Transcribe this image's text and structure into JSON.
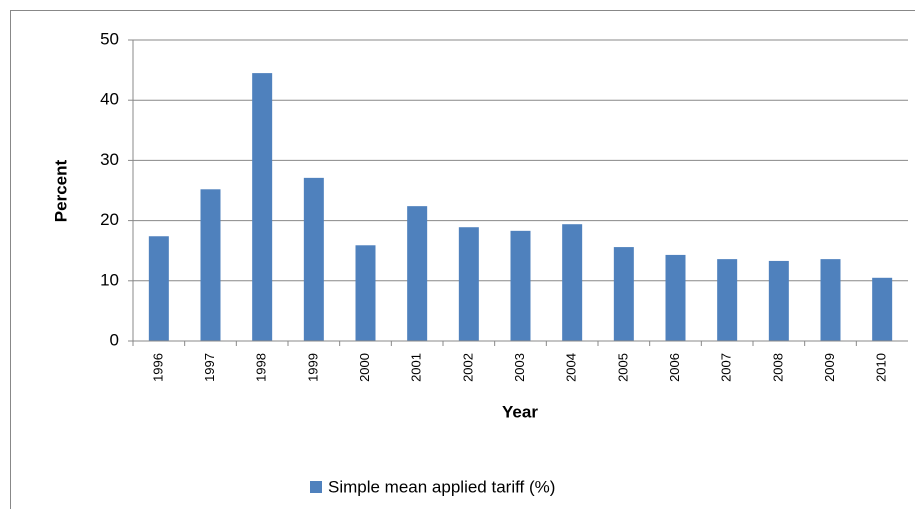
{
  "chart_data": {
    "type": "bar",
    "x_label": "Year",
    "y_label": "Percent",
    "categories": [
      "1996",
      "1997",
      "1998",
      "1999",
      "2000",
      "2001",
      "2002",
      "2003",
      "2004",
      "2005",
      "2006",
      "2007",
      "2008",
      "2009",
      "2010"
    ],
    "series": [
      {
        "name": "Simple mean applied tariff (%)",
        "color": "#4f81bd",
        "values": [
          17.4,
          25.2,
          44.5,
          27.1,
          15.9,
          22.4,
          18.9,
          18.3,
          19.4,
          15.6,
          14.3,
          13.6,
          13.3,
          13.6,
          10.5
        ]
      }
    ],
    "ylim": [
      0,
      50
    ],
    "yticks": [
      0,
      10,
      20,
      30,
      40,
      50
    ],
    "grid": true,
    "legend": "bottom"
  }
}
